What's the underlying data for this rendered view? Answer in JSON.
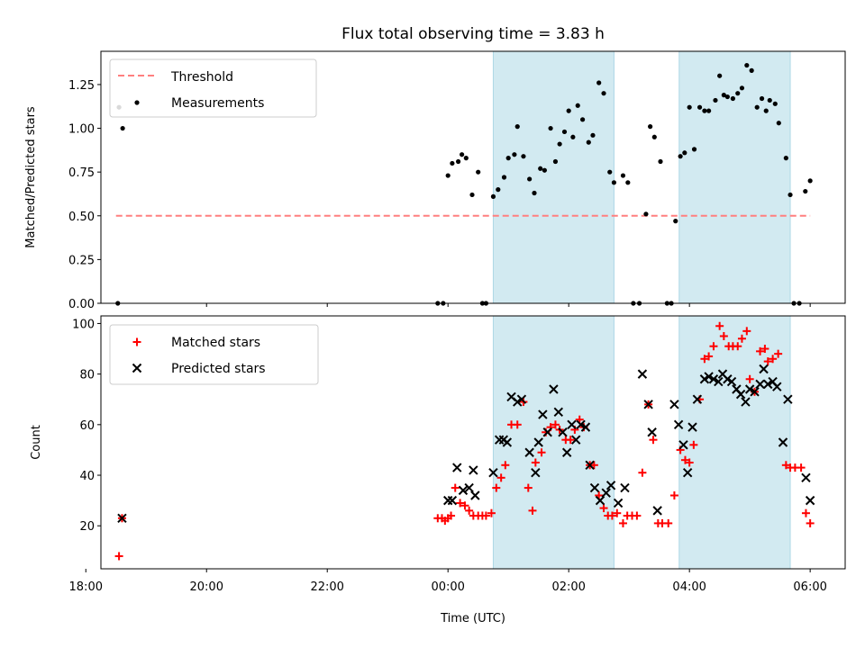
{
  "figure_title": "Flux total observing time = 3.83 h",
  "xlabel": "Time (UTC)",
  "colors": {
    "threshold": "#ff7f7f",
    "measurement": "#000000",
    "matched": "#ff0000",
    "predicted": "#000000",
    "shade": "#add8e6"
  },
  "chart_data": [
    {
      "type": "scatter",
      "ylabel": "Matched/Predicted stars",
      "xlim": [
        -5.75,
        6.58
      ],
      "ylim": [
        0,
        1.44
      ],
      "x_ticks": [
        -6,
        -4,
        -2,
        0,
        2,
        4,
        6
      ],
      "y_ticks": [
        0.0,
        0.25,
        0.5,
        0.75,
        1.0,
        1.25
      ],
      "y_tick_labels": [
        "0.00",
        "0.25",
        "0.50",
        "0.75",
        "1.00",
        "1.25"
      ],
      "shaded_intervals_utc_hours": [
        [
          0.75,
          2.75
        ],
        [
          3.83,
          5.67
        ]
      ],
      "legend_location": "upper left",
      "legend": [
        {
          "label": "Threshold",
          "kind": "dashed-line"
        },
        {
          "label": "Measurements",
          "kind": "dot"
        }
      ],
      "threshold": {
        "y": 0.5,
        "x_range": [
          -5.5,
          6.0
        ]
      },
      "measurements": [
        [
          -5.47,
          0.0
        ],
        [
          -5.45,
          1.12
        ],
        [
          -5.39,
          1.0
        ],
        [
          -0.17,
          0.0
        ],
        [
          -0.08,
          0.0
        ],
        [
          0.0,
          0.73
        ],
        [
          0.07,
          0.8
        ],
        [
          0.17,
          0.81
        ],
        [
          0.23,
          0.85
        ],
        [
          0.3,
          0.83
        ],
        [
          0.4,
          0.62
        ],
        [
          0.5,
          0.75
        ],
        [
          0.57,
          0.0
        ],
        [
          0.63,
          0.0
        ],
        [
          0.75,
          0.61
        ],
        [
          0.83,
          0.65
        ],
        [
          0.93,
          0.72
        ],
        [
          1.0,
          0.83
        ],
        [
          1.1,
          0.85
        ],
        [
          1.15,
          1.01
        ],
        [
          1.25,
          0.84
        ],
        [
          1.35,
          0.71
        ],
        [
          1.43,
          0.63
        ],
        [
          1.53,
          0.77
        ],
        [
          1.6,
          0.76
        ],
        [
          1.7,
          1.0
        ],
        [
          1.78,
          0.81
        ],
        [
          1.85,
          0.91
        ],
        [
          1.93,
          0.98
        ],
        [
          2.0,
          1.1
        ],
        [
          2.07,
          0.95
        ],
        [
          2.15,
          1.13
        ],
        [
          2.23,
          1.05
        ],
        [
          2.33,
          0.92
        ],
        [
          2.4,
          0.96
        ],
        [
          2.5,
          1.26
        ],
        [
          2.58,
          1.2
        ],
        [
          2.68,
          0.75
        ],
        [
          2.75,
          0.69
        ],
        [
          2.9,
          0.73
        ],
        [
          2.98,
          0.69
        ],
        [
          3.07,
          0.0
        ],
        [
          3.17,
          0.0
        ],
        [
          3.28,
          0.51
        ],
        [
          3.35,
          1.01
        ],
        [
          3.42,
          0.95
        ],
        [
          3.52,
          0.81
        ],
        [
          3.63,
          0.0
        ],
        [
          3.7,
          0.0
        ],
        [
          3.77,
          0.47
        ],
        [
          3.85,
          0.84
        ],
        [
          3.92,
          0.86
        ],
        [
          4.0,
          1.12
        ],
        [
          4.08,
          0.88
        ],
        [
          4.17,
          1.12
        ],
        [
          4.25,
          1.1
        ],
        [
          4.32,
          1.1
        ],
        [
          4.43,
          1.16
        ],
        [
          4.5,
          1.3
        ],
        [
          4.57,
          1.19
        ],
        [
          4.63,
          1.18
        ],
        [
          4.72,
          1.17
        ],
        [
          4.8,
          1.2
        ],
        [
          4.87,
          1.23
        ],
        [
          4.95,
          1.36
        ],
        [
          5.03,
          1.33
        ],
        [
          5.12,
          1.12
        ],
        [
          5.2,
          1.17
        ],
        [
          5.27,
          1.1
        ],
        [
          5.33,
          1.16
        ],
        [
          5.42,
          1.14
        ],
        [
          5.48,
          1.03
        ],
        [
          5.6,
          0.83
        ],
        [
          5.67,
          0.62
        ],
        [
          5.73,
          0.0
        ],
        [
          5.82,
          0.0
        ],
        [
          5.92,
          0.64
        ],
        [
          6.0,
          0.7
        ]
      ]
    },
    {
      "type": "scatter",
      "ylabel": "Count",
      "xlim": [
        -5.75,
        6.58
      ],
      "ylim": [
        3,
        103
      ],
      "x_ticks": [
        -6,
        -4,
        -2,
        0,
        2,
        4,
        6
      ],
      "x_tick_labels": [
        "18:00",
        "20:00",
        "22:00",
        "00:00",
        "02:00",
        "04:00",
        "06:00"
      ],
      "y_ticks": [
        20,
        40,
        60,
        80,
        100
      ],
      "y_tick_labels": [
        "20",
        "40",
        "60",
        "80",
        "100"
      ],
      "shaded_intervals_utc_hours": [
        [
          0.75,
          2.75
        ],
        [
          3.83,
          5.67
        ]
      ],
      "legend_location": "upper left",
      "legend": [
        {
          "label": "Matched stars",
          "kind": "plus"
        },
        {
          "label": "Predicted stars",
          "kind": "cross"
        }
      ],
      "series": [
        {
          "name": "Matched stars",
          "marker": "plus",
          "points": [
            [
              -5.45,
              8
            ],
            [
              -5.4,
              23
            ],
            [
              -0.17,
              23
            ],
            [
              -0.1,
              23
            ],
            [
              -0.05,
              22
            ],
            [
              0.0,
              23
            ],
            [
              0.05,
              24
            ],
            [
              0.12,
              35
            ],
            [
              0.2,
              29
            ],
            [
              0.28,
              28
            ],
            [
              0.35,
              26
            ],
            [
              0.42,
              24
            ],
            [
              0.5,
              24
            ],
            [
              0.57,
              24
            ],
            [
              0.63,
              24
            ],
            [
              0.72,
              25
            ],
            [
              0.8,
              35
            ],
            [
              0.88,
              39
            ],
            [
              0.95,
              44
            ],
            [
              1.05,
              60
            ],
            [
              1.15,
              60
            ],
            [
              1.25,
              69
            ],
            [
              1.33,
              35
            ],
            [
              1.4,
              26
            ],
            [
              1.45,
              45
            ],
            [
              1.55,
              49
            ],
            [
              1.62,
              57
            ],
            [
              1.7,
              59
            ],
            [
              1.78,
              60
            ],
            [
              1.85,
              58
            ],
            [
              1.95,
              54
            ],
            [
              2.03,
              54
            ],
            [
              2.1,
              58
            ],
            [
              2.18,
              62
            ],
            [
              2.25,
              59
            ],
            [
              2.35,
              44
            ],
            [
              2.42,
              44
            ],
            [
              2.5,
              32
            ],
            [
              2.58,
              27
            ],
            [
              2.65,
              24
            ],
            [
              2.72,
              24
            ],
            [
              2.8,
              25
            ],
            [
              2.9,
              21
            ],
            [
              2.97,
              24
            ],
            [
              3.05,
              24
            ],
            [
              3.13,
              24
            ],
            [
              3.22,
              41
            ],
            [
              3.32,
              68
            ],
            [
              3.4,
              54
            ],
            [
              3.48,
              21
            ],
            [
              3.55,
              21
            ],
            [
              3.65,
              21
            ],
            [
              3.75,
              32
            ],
            [
              3.85,
              50
            ],
            [
              3.93,
              46
            ],
            [
              4.0,
              45
            ],
            [
              4.07,
              52
            ],
            [
              4.17,
              70
            ],
            [
              4.25,
              86
            ],
            [
              4.32,
              87
            ],
            [
              4.4,
              91
            ],
            [
              4.5,
              99
            ],
            [
              4.57,
              95
            ],
            [
              4.65,
              91
            ],
            [
              4.72,
              91
            ],
            [
              4.8,
              91
            ],
            [
              4.87,
              94
            ],
            [
              4.95,
              97
            ],
            [
              5.0,
              78
            ],
            [
              5.08,
              73
            ],
            [
              5.17,
              89
            ],
            [
              5.25,
              90
            ],
            [
              5.3,
              85
            ],
            [
              5.38,
              86
            ],
            [
              5.47,
              88
            ],
            [
              5.6,
              44
            ],
            [
              5.67,
              43
            ],
            [
              5.75,
              43
            ],
            [
              5.85,
              43
            ],
            [
              5.93,
              25
            ],
            [
              6.0,
              21
            ]
          ]
        },
        {
          "name": "Predicted stars",
          "marker": "cross",
          "points": [
            [
              -5.4,
              23
            ],
            [
              0.0,
              30
            ],
            [
              0.07,
              30
            ],
            [
              0.15,
              43
            ],
            [
              0.25,
              34
            ],
            [
              0.35,
              35
            ],
            [
              0.45,
              32
            ],
            [
              0.42,
              42
            ],
            [
              0.75,
              41
            ],
            [
              0.85,
              54
            ],
            [
              0.92,
              54
            ],
            [
              0.98,
              53
            ],
            [
              1.05,
              71
            ],
            [
              1.15,
              69
            ],
            [
              1.22,
              70
            ],
            [
              1.35,
              49
            ],
            [
              1.45,
              41
            ],
            [
              1.5,
              53
            ],
            [
              1.57,
              64
            ],
            [
              1.65,
              57
            ],
            [
              1.75,
              74
            ],
            [
              1.83,
              65
            ],
            [
              1.9,
              57
            ],
            [
              1.97,
              49
            ],
            [
              2.05,
              60
            ],
            [
              2.12,
              54
            ],
            [
              2.2,
              60
            ],
            [
              2.28,
              59
            ],
            [
              2.35,
              44
            ],
            [
              2.43,
              35
            ],
            [
              2.52,
              30
            ],
            [
              2.62,
              33
            ],
            [
              2.7,
              36
            ],
            [
              2.82,
              29
            ],
            [
              2.93,
              35
            ],
            [
              3.22,
              80
            ],
            [
              3.32,
              68
            ],
            [
              3.38,
              57
            ],
            [
              3.47,
              26
            ],
            [
              3.75,
              68
            ],
            [
              3.82,
              60
            ],
            [
              3.9,
              52
            ],
            [
              3.97,
              41
            ],
            [
              4.05,
              59
            ],
            [
              4.13,
              70
            ],
            [
              4.25,
              78
            ],
            [
              4.32,
              79
            ],
            [
              4.4,
              78
            ],
            [
              4.48,
              77
            ],
            [
              4.55,
              80
            ],
            [
              4.63,
              78
            ],
            [
              4.7,
              77
            ],
            [
              4.78,
              74
            ],
            [
              4.85,
              72
            ],
            [
              4.93,
              69
            ],
            [
              5.0,
              74
            ],
            [
              5.08,
              73
            ],
            [
              5.17,
              76
            ],
            [
              5.23,
              82
            ],
            [
              5.3,
              76
            ],
            [
              5.38,
              77
            ],
            [
              5.45,
              75
            ],
            [
              5.55,
              53
            ],
            [
              5.63,
              70
            ],
            [
              5.93,
              39
            ],
            [
              6.0,
              30
            ]
          ]
        }
      ]
    }
  ]
}
